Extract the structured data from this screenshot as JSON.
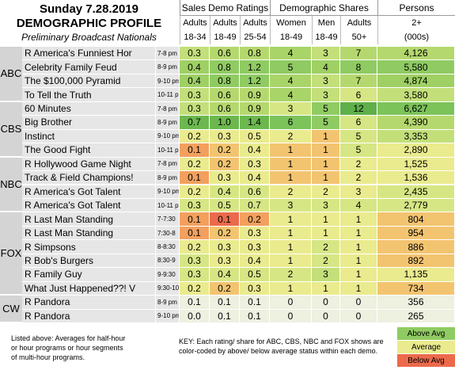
{
  "header": {
    "title": "Sunday 7.28.2019",
    "subtitle": "DEMOGRAPHIC PROFILE",
    "note": "Preliminary Broadcast Nationals"
  },
  "column_groups": [
    "Sales Demo Ratings",
    "Demographic Shares",
    "Persons"
  ],
  "columns": [
    [
      "Adults",
      "18-34"
    ],
    [
      "Adults",
      "18-49"
    ],
    [
      "Adults",
      "25-54"
    ],
    [
      "Women",
      "18-49"
    ],
    [
      "Men",
      "18-49"
    ],
    [
      "Adults",
      "50+"
    ],
    [
      "2+",
      "(000s)"
    ]
  ],
  "networks": [
    {
      "name": "ABC",
      "rows": [
        {
          "show": "R America's Funniest Hor",
          "time": "7-8 pm",
          "cells": [
            "0.3",
            "0.6",
            "0.8",
            "4",
            "3",
            "7",
            "4,126"
          ],
          "colors": [
            "#c3df7a",
            "#b5d86e",
            "#b5d86e",
            "#a9d468",
            "#c3df7a",
            "#b5d86e",
            "#b5d86e"
          ]
        },
        {
          "show": "Celebrity Family Feud",
          "time": "8-9 pm",
          "cells": [
            "0.4",
            "0.8",
            "1.2",
            "5",
            "4",
            "8",
            "5,580"
          ],
          "colors": [
            "#9fd064",
            "#8fcb62",
            "#8fcb62",
            "#8fcb62",
            "#9fd064",
            "#8fcb62",
            "#8fcb62"
          ]
        },
        {
          "show": "The $100,000 Pyramid",
          "time": "9-10 pm",
          "cells": [
            "0.4",
            "0.8",
            "1.2",
            "4",
            "3",
            "7",
            "4,874"
          ],
          "colors": [
            "#9fd064",
            "#8fcb62",
            "#8fcb62",
            "#a9d468",
            "#c3df7a",
            "#b5d86e",
            "#9fd064"
          ]
        },
        {
          "show": "To Tell the Truth",
          "time": "10-11 pm",
          "cells": [
            "0.3",
            "0.6",
            "0.9",
            "4",
            "3",
            "6",
            "3,580"
          ],
          "colors": [
            "#c3df7a",
            "#b5d86e",
            "#b5d86e",
            "#a9d468",
            "#c3df7a",
            "#d7e684",
            "#c3df7a"
          ]
        }
      ]
    },
    {
      "name": "CBS",
      "rows": [
        {
          "show": "60 Minutes",
          "time": "7-8 pm",
          "cells": [
            "0.3",
            "0.6",
            "0.9",
            "3",
            "5",
            "12",
            "6,627"
          ],
          "colors": [
            "#c3df7a",
            "#b5d86e",
            "#b5d86e",
            "#d7e684",
            "#8fcb62",
            "#5fb04a",
            "#7cc35a"
          ]
        },
        {
          "show": "Big Brother",
          "time": "8-9 pm",
          "cells": [
            "0.7",
            "1.0",
            "1.4",
            "6",
            "5",
            "6",
            "4,390"
          ],
          "colors": [
            "#6cb84e",
            "#6cb84e",
            "#6cb84e",
            "#7cc35a",
            "#8fcb62",
            "#d7e684",
            "#b5d86e"
          ]
        },
        {
          "show": "Instinct",
          "time": "9-10 pm",
          "cells": [
            "0.2",
            "0.3",
            "0.5",
            "2",
            "1",
            "5",
            "3,353"
          ],
          "colors": [
            "#eaeb8e",
            "#eaeb8e",
            "#eaeb8e",
            "#eaeb8e",
            "#f3c470",
            "#d7e684",
            "#c3df7a"
          ]
        },
        {
          "show": "The Good Fight",
          "time": "10-11 pm",
          "cells": [
            "0.1",
            "0.2",
            "0.4",
            "1",
            "1",
            "5",
            "2,890"
          ],
          "colors": [
            "#f3a05e",
            "#f3c470",
            "#eaeb8e",
            "#f3c470",
            "#f3c470",
            "#d7e684",
            "#eaeb8e"
          ]
        }
      ]
    },
    {
      "name": "NBC",
      "rows": [
        {
          "show": "R Hollywood Game Night",
          "time": "7-8 pm",
          "cells": [
            "0.2",
            "0.2",
            "0.3",
            "1",
            "1",
            "2",
            "1,525"
          ],
          "colors": [
            "#eaeb8e",
            "#f3c470",
            "#eaeb8e",
            "#f3c470",
            "#f3c470",
            "#eaeb8e",
            "#eaeb8e"
          ]
        },
        {
          "show": "Track & Field Champions!",
          "time": "8-9 pm",
          "cells": [
            "0.1",
            "0.3",
            "0.4",
            "1",
            "1",
            "2",
            "1,536"
          ],
          "colors": [
            "#f3a05e",
            "#eaeb8e",
            "#eaeb8e",
            "#f3c470",
            "#f3c470",
            "#eaeb8e",
            "#eaeb8e"
          ]
        },
        {
          "show": "R America's Got Talent",
          "time": "9-10 pm",
          "cells": [
            "0.2",
            "0.4",
            "0.6",
            "2",
            "2",
            "3",
            "2,435"
          ],
          "colors": [
            "#eaeb8e",
            "#d7e684",
            "#d7e684",
            "#eaeb8e",
            "#eaeb8e",
            "#eaeb8e",
            "#d7e684"
          ]
        },
        {
          "show": "R America's Got Talent",
          "time": "10-11 pm",
          "cells": [
            "0.3",
            "0.5",
            "0.7",
            "3",
            "3",
            "4",
            "2,779"
          ],
          "colors": [
            "#d7e684",
            "#d7e684",
            "#d7e684",
            "#d7e684",
            "#d7e684",
            "#d7e684",
            "#d7e684"
          ]
        }
      ]
    },
    {
      "name": "FOX",
      "rows": [
        {
          "show": "R Last Man Standing",
          "time": "7-7:30",
          "cells": [
            "0.1",
            "0.1",
            "0.2",
            "1",
            "1",
            "1",
            "804"
          ],
          "colors": [
            "#f3a05e",
            "#ec6a4c",
            "#f3a05e",
            "#eaeb8e",
            "#eaeb8e",
            "#eaeb8e",
            "#f3c470"
          ]
        },
        {
          "show": "R Last Man Standing",
          "time": "7:30-8",
          "cells": [
            "0.1",
            "0.2",
            "0.3",
            "1",
            "1",
            "1",
            "954"
          ],
          "colors": [
            "#f3a05e",
            "#f3c470",
            "#eaeb8e",
            "#eaeb8e",
            "#eaeb8e",
            "#eaeb8e",
            "#f3c470"
          ]
        },
        {
          "show": "R Simpsons",
          "time": "8-8:30",
          "cells": [
            "0.2",
            "0.3",
            "0.3",
            "1",
            "2",
            "1",
            "886"
          ],
          "colors": [
            "#eaeb8e",
            "#eaeb8e",
            "#eaeb8e",
            "#eaeb8e",
            "#d7e684",
            "#eaeb8e",
            "#f3c470"
          ]
        },
        {
          "show": "R Bob's Burgers",
          "time": "8:30-9",
          "cells": [
            "0.3",
            "0.3",
            "0.4",
            "1",
            "2",
            "1",
            "892"
          ],
          "colors": [
            "#d7e684",
            "#eaeb8e",
            "#eaeb8e",
            "#eaeb8e",
            "#d7e684",
            "#eaeb8e",
            "#f3c470"
          ]
        },
        {
          "show": "R Family Guy",
          "time": "9-9:30",
          "cells": [
            "0.3",
            "0.4",
            "0.5",
            "2",
            "3",
            "1",
            "1,135"
          ],
          "colors": [
            "#d7e684",
            "#d7e684",
            "#d7e684",
            "#d7e684",
            "#c3df7a",
            "#eaeb8e",
            "#eaeb8e"
          ]
        },
        {
          "show": "What Just Happened??! V",
          "time": "9:30-10",
          "cells": [
            "0.2",
            "0.2",
            "0.3",
            "1",
            "1",
            "1",
            "734"
          ],
          "colors": [
            "#eaeb8e",
            "#f3c470",
            "#eaeb8e",
            "#eaeb8e",
            "#eaeb8e",
            "#eaeb8e",
            "#f3c470"
          ]
        }
      ]
    },
    {
      "name": "CW",
      "rows": [
        {
          "show": "R Pandora",
          "time": "8-9 pm",
          "cells": [
            "0.1",
            "0.1",
            "0.1",
            "0",
            "0",
            "0",
            "356"
          ],
          "colors": [
            "#eef0e0",
            "#eef0e0",
            "#eef0e0",
            "#eef0e0",
            "#eef0e0",
            "#eef0e0",
            "#eef0e0"
          ]
        },
        {
          "show": "R Pandora",
          "time": "9-10 pm",
          "cells": [
            "0.0",
            "0.1",
            "0.1",
            "0",
            "0",
            "0",
            "265"
          ],
          "colors": [
            "#eef0e0",
            "#eef0e0",
            "#eef0e0",
            "#eef0e0",
            "#eef0e0",
            "#eef0e0",
            "#eef0e0"
          ]
        }
      ]
    }
  ],
  "footnote": "Listed above: Averages for half-hour or hour programs or hour segments of multi-hour programs.",
  "key": "KEY: Each rating/ share for ABC, CBS, NBC and FOX shows are color-coded by above/ below average status within each demo.",
  "legend": [
    {
      "label": "Above Avg",
      "color": "#8fcb62"
    },
    {
      "label": "Average",
      "color": "#eaeb8e"
    },
    {
      "label": "Below Avg",
      "color": "#ec6a4c"
    }
  ]
}
